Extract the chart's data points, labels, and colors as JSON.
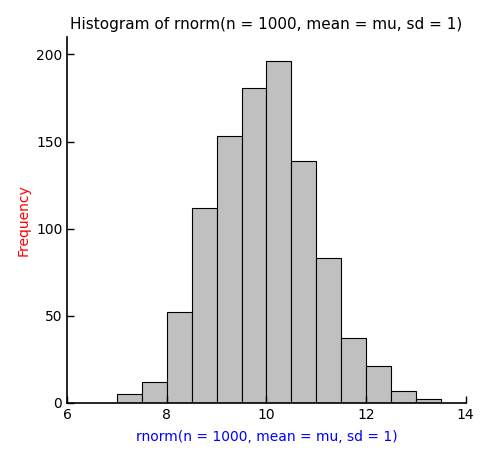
{
  "title": "Histogram of rnorm(n = 1000, mean = mu, sd = 1)",
  "xlabel": "rnorm(n = 1000, mean = mu, sd = 1)",
  "ylabel": "Frequency",
  "bar_color": "#c0c0c0",
  "bar_edge_color": "#000000",
  "background_color": "#ffffff",
  "xlim": [
    6,
    14
  ],
  "ylim": [
    0,
    210
  ],
  "xticks": [
    6,
    8,
    10,
    12,
    14
  ],
  "yticks": [
    0,
    50,
    100,
    150,
    200
  ],
  "bin_edges": [
    7.0,
    7.5,
    8.0,
    8.5,
    9.0,
    9.5,
    10.0,
    10.5,
    11.0,
    11.5,
    12.0,
    12.5,
    13.0,
    13.5
  ],
  "bin_heights": [
    5,
    12,
    52,
    112,
    153,
    181,
    196,
    139,
    83,
    37,
    21,
    7,
    2
  ],
  "title_fontsize": 11,
  "axis_label_fontsize": 10,
  "tick_fontsize": 10,
  "xlabel_color": "#0000ff",
  "ylabel_color": "#ff0000",
  "title_fontweight": "normal"
}
